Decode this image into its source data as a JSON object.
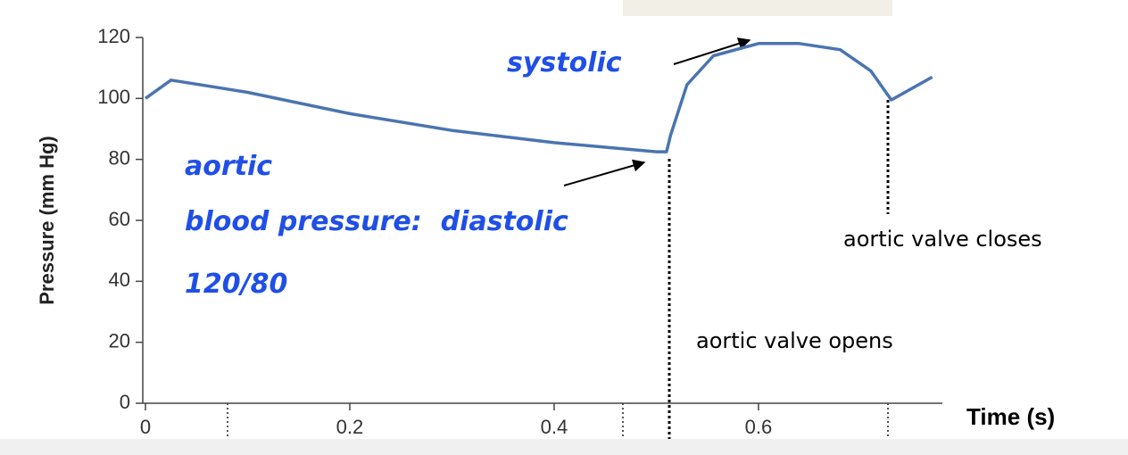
{
  "chart_data": {
    "type": "line",
    "y_label": "Pressure (mm Hg)",
    "x_label": "Time (s)",
    "annotations": [
      "systolic",
      "aortic",
      "blood pressure:  diastolic",
      "120/80",
      "aortic valve closes",
      "aortic valve opens"
    ],
    "x": [
      0,
      0.025,
      0.1,
      0.2,
      0.3,
      0.4,
      0.5,
      0.51,
      0.514,
      0.53,
      0.556,
      0.6,
      0.64,
      0.68,
      0.71,
      0.73,
      0.77
    ],
    "values": [
      100,
      106,
      102,
      95,
      89.5,
      85.5,
      82.5,
      82.5,
      88,
      104.5,
      114,
      118,
      118,
      116,
      109,
      99.5,
      107
    ],
    "color": "#4a74b0",
    "xlim": [
      0,
      0.78
    ],
    "ylim": [
      0,
      120
    ],
    "xticks": [
      0,
      0.2,
      0.4,
      0.6
    ],
    "yticks": [
      0,
      20,
      40,
      60,
      80,
      100,
      120
    ]
  }
}
